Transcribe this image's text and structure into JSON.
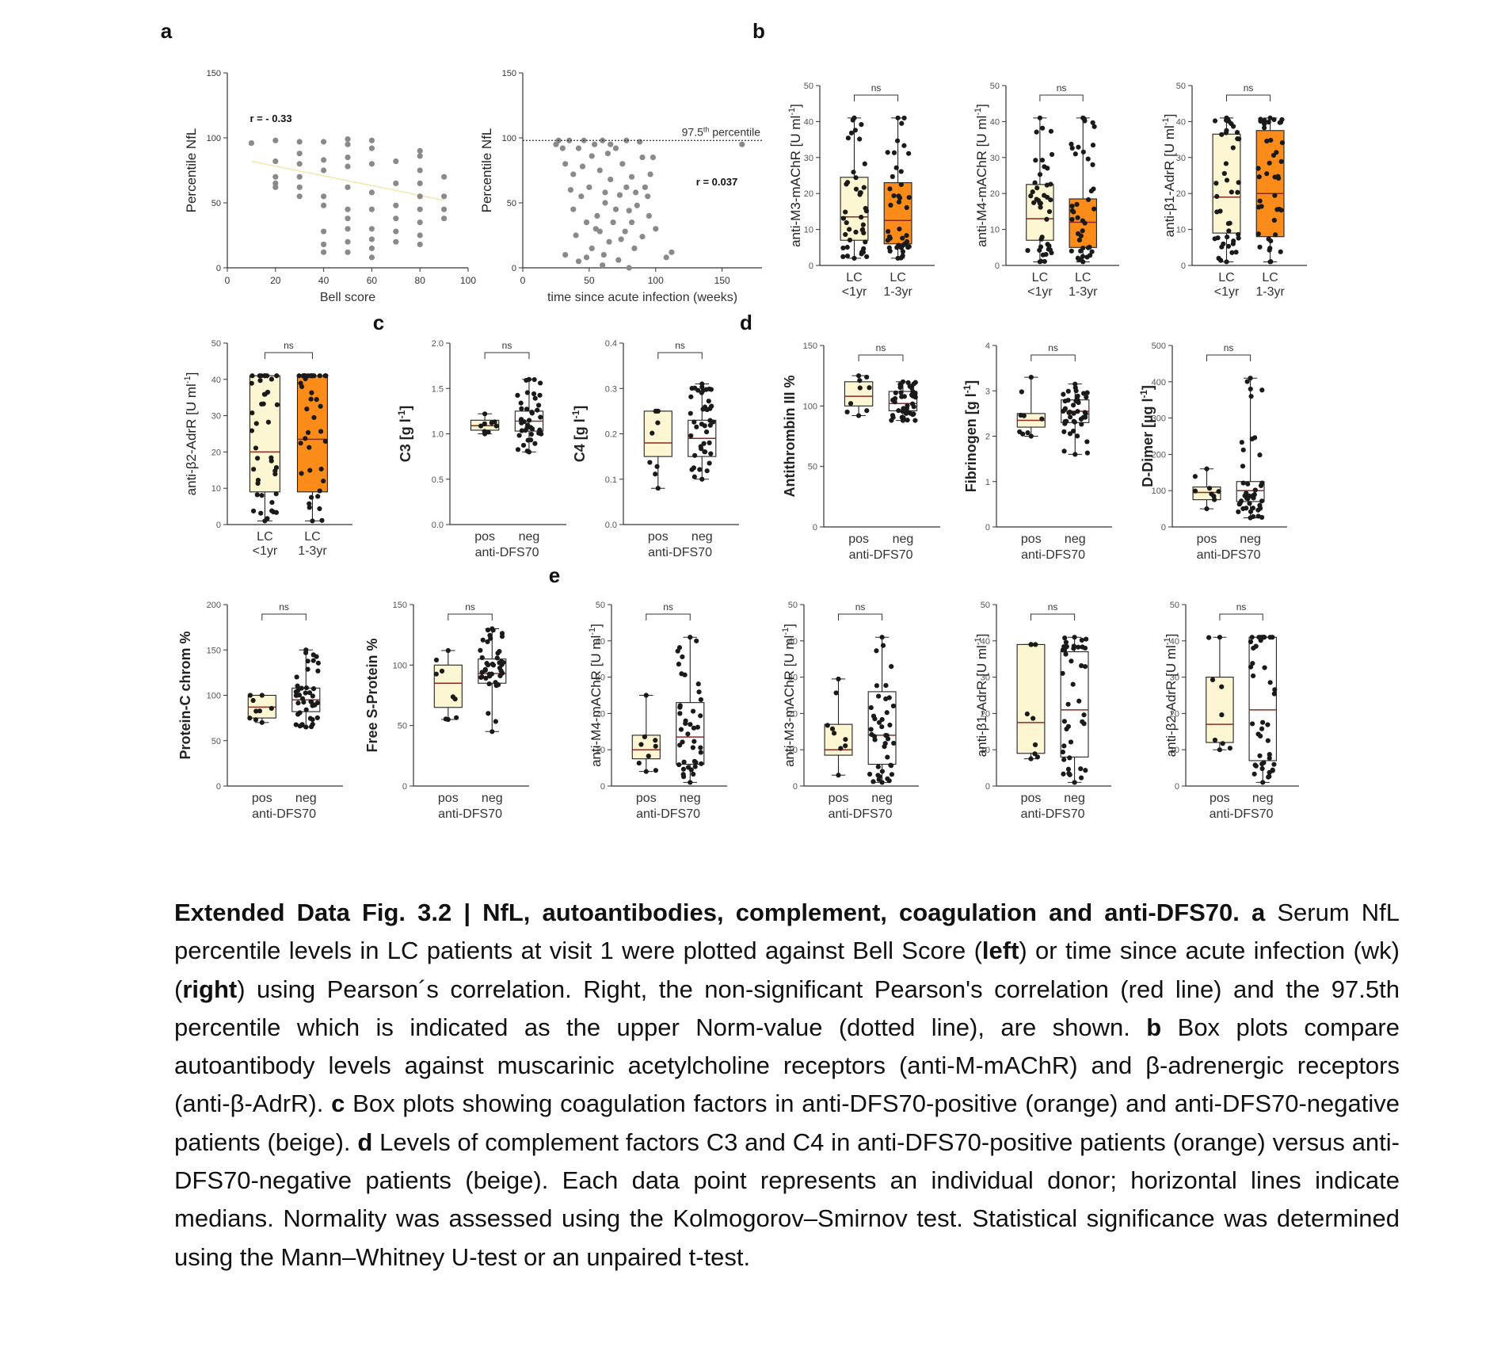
{
  "panel_letters": [
    "a",
    "b",
    "c",
    "d",
    "e"
  ],
  "colors": {
    "beige": "#fdf6d3",
    "orange": "#fb8c1a",
    "dots": "#1a1a1a",
    "gray_dots": "#8a8a8a",
    "axis": "#333333",
    "median_line": "#8b2a1f",
    "trend": "#f2e7a8"
  },
  "chart_data": [
    {
      "id": "a1",
      "type": "scatter",
      "panel": "a",
      "xlabel": "Bell score",
      "ylabel": "Percentile NfL",
      "xlim": [
        0,
        100
      ],
      "ylim": [
        0,
        150
      ],
      "xticks": [
        "0",
        "20",
        "40",
        "60",
        "80",
        "100"
      ],
      "yticks": [
        "0",
        "50",
        "100",
        "150"
      ],
      "annotation": "r = - 0.33",
      "points": [
        [
          10,
          96
        ],
        [
          20,
          98
        ],
        [
          20,
          82
        ],
        [
          20,
          70
        ],
        [
          20,
          65
        ],
        [
          20,
          62
        ],
        [
          30,
          97
        ],
        [
          30,
          88
        ],
        [
          30,
          80
        ],
        [
          30,
          70
        ],
        [
          30,
          62
        ],
        [
          30,
          55
        ],
        [
          40,
          97
        ],
        [
          40,
          83
        ],
        [
          40,
          75
        ],
        [
          40,
          55
        ],
        [
          40,
          48
        ],
        [
          40,
          28
        ],
        [
          40,
          18
        ],
        [
          40,
          12
        ],
        [
          50,
          99
        ],
        [
          50,
          95
        ],
        [
          50,
          85
        ],
        [
          50,
          78
        ],
        [
          50,
          62
        ],
        [
          50,
          45
        ],
        [
          50,
          38
        ],
        [
          50,
          30
        ],
        [
          50,
          20
        ],
        [
          50,
          12
        ],
        [
          60,
          98
        ],
        [
          60,
          92
        ],
        [
          60,
          80
        ],
        [
          60,
          58
        ],
        [
          60,
          45
        ],
        [
          60,
          30
        ],
        [
          60,
          22
        ],
        [
          60,
          15
        ],
        [
          60,
          8
        ],
        [
          70,
          82
        ],
        [
          70,
          65
        ],
        [
          70,
          48
        ],
        [
          70,
          38
        ],
        [
          70,
          28
        ],
        [
          70,
          20
        ],
        [
          80,
          90
        ],
        [
          80,
          86
        ],
        [
          80,
          75
        ],
        [
          80,
          65
        ],
        [
          80,
          55
        ],
        [
          80,
          45
        ],
        [
          80,
          35
        ],
        [
          80,
          25
        ],
        [
          80,
          18
        ],
        [
          90,
          70
        ],
        [
          90,
          55
        ],
        [
          90,
          45
        ],
        [
          90,
          38
        ]
      ],
      "trend": [
        [
          10,
          82
        ],
        [
          90,
          52
        ]
      ]
    },
    {
      "id": "a2",
      "type": "scatter",
      "panel": "a",
      "xlabel": "time since acute infection (weeks)",
      "ylabel": "Percentile NfL",
      "xlim": [
        0,
        180
      ],
      "ylim": [
        0,
        150
      ],
      "xticks": [
        "0",
        "50",
        "100",
        "150"
      ],
      "yticks": [
        "0",
        "50",
        "100",
        "150"
      ],
      "annotation": "r = 0.037",
      "reference_label": "97.5",
      "reference_sup": "th",
      "reference_suffix": " percentile",
      "reference_value": 98,
      "points": [
        [
          25,
          95
        ],
        [
          27,
          98
        ],
        [
          30,
          92
        ],
        [
          32,
          80
        ],
        [
          35,
          98
        ],
        [
          36,
          60
        ],
        [
          38,
          72
        ],
        [
          40,
          25
        ],
        [
          42,
          92
        ],
        [
          44,
          55
        ],
        [
          45,
          78
        ],
        [
          46,
          98
        ],
        [
          48,
          8
        ],
        [
          50,
          62
        ],
        [
          52,
          86
        ],
        [
          54,
          95
        ],
        [
          55,
          30
        ],
        [
          56,
          40
        ],
        [
          58,
          75
        ],
        [
          60,
          98
        ],
        [
          61,
          10
        ],
        [
          62,
          50
        ],
        [
          64,
          88
        ],
        [
          65,
          20
        ],
        [
          66,
          68
        ],
        [
          68,
          35
        ],
        [
          70,
          92
        ],
        [
          72,
          6
        ],
        [
          73,
          56
        ],
        [
          75,
          80
        ],
        [
          77,
          28
        ],
        [
          78,
          98
        ],
        [
          80,
          44
        ],
        [
          82,
          70
        ],
        [
          84,
          15
        ],
        [
          85,
          58
        ],
        [
          88,
          97
        ],
        [
          90,
          24
        ],
        [
          92,
          62
        ],
        [
          95,
          40
        ],
        [
          98,
          85
        ],
        [
          100,
          30
        ],
        [
          32,
          10
        ],
        [
          38,
          45
        ],
        [
          42,
          5
        ],
        [
          48,
          35
        ],
        [
          52,
          15
        ],
        [
          58,
          28
        ],
        [
          62,
          58
        ],
        [
          66,
          95
        ],
        [
          70,
          45
        ],
        [
          74,
          22
        ],
        [
          78,
          62
        ],
        [
          82,
          35
        ],
        [
          86,
          48
        ],
        [
          90,
          85
        ],
        [
          94,
          55
        ],
        [
          96,
          72
        ],
        [
          108,
          8
        ],
        [
          112,
          12
        ],
        [
          165,
          95
        ],
        [
          60,
          2
        ],
        [
          80,
          0
        ]
      ]
    },
    {
      "id": "b1",
      "type": "box",
      "panel": "b",
      "ylabel": "anti-M3-mAChR [U ml",
      "ylabel_sup": "-1",
      "ylabel_suffix": "]",
      "ylim": [
        0,
        50
      ],
      "yticks": [
        "0",
        "10",
        "20",
        "30",
        "40",
        "50"
      ],
      "groups": [
        "LC\n<1yr",
        "LC\n1-3yr"
      ],
      "fills": [
        "beige",
        "orange"
      ],
      "sig": "ns",
      "stats": [
        {
          "min": 2,
          "q1": 7,
          "median": 13.5,
          "q3": 24.5,
          "max": 41
        },
        {
          "min": 2,
          "q1": 6,
          "median": 12.5,
          "q3": 23,
          "max": 41
        }
      ]
    },
    {
      "id": "b2",
      "type": "box",
      "panel": "b",
      "ylabel": "anti-M4-mAChR [U ml",
      "ylabel_sup": "-1",
      "ylabel_suffix": "]",
      "ylim": [
        0,
        50
      ],
      "yticks": [
        "0",
        "10",
        "20",
        "30",
        "40",
        "50"
      ],
      "groups": [
        "LC\n<1yr",
        "LC\n1-3yr"
      ],
      "fills": [
        "beige",
        "orange"
      ],
      "sig": "ns",
      "stats": [
        {
          "min": 1,
          "q1": 7,
          "median": 13,
          "q3": 22.5,
          "max": 41
        },
        {
          "min": 1,
          "q1": 5,
          "median": 12,
          "q3": 18.5,
          "max": 41
        }
      ]
    },
    {
      "id": "b3",
      "type": "box",
      "panel": "b",
      "ylabel": "anti-β1-AdrR [U ml",
      "ylabel_sup": "-1",
      "ylabel_suffix": "]",
      "ylim": [
        0,
        50
      ],
      "yticks": [
        "0",
        "10",
        "20",
        "30",
        "40",
        "50"
      ],
      "groups": [
        "LC\n<1yr",
        "LC\n1-3yr"
      ],
      "fills": [
        "beige",
        "orange"
      ],
      "sig": "ns",
      "stats": [
        {
          "min": 1,
          "q1": 9,
          "median": 19,
          "q3": 36.5,
          "max": 41
        },
        {
          "min": 1,
          "q1": 8,
          "median": 20,
          "q3": 37.5,
          "max": 41
        }
      ]
    },
    {
      "id": "b4",
      "type": "box",
      "panel": "b",
      "ylabel": "anti-β2-AdrR [U ml",
      "ylabel_sup": "-1",
      "ylabel_suffix": "]",
      "ylim": [
        0,
        50
      ],
      "yticks": [
        "0",
        "10",
        "20",
        "30",
        "40",
        "50"
      ],
      "groups": [
        "LC\n<1yr",
        "LC\n1-3yr"
      ],
      "fills": [
        "beige",
        "orange"
      ],
      "sig": "ns",
      "stats": [
        {
          "min": 1,
          "q1": 9,
          "median": 20,
          "q3": 41,
          "max": 41
        },
        {
          "min": 1,
          "q1": 9,
          "median": 23.5,
          "q3": 41,
          "max": 41
        }
      ]
    },
    {
      "id": "c1",
      "type": "box",
      "panel": "c",
      "ylabel": "C3 [g l",
      "ylabel_sup": "-1",
      "ylabel_suffix": "]",
      "bold_label": true,
      "ylim": [
        0,
        2.0
      ],
      "yticks": [
        "0.0",
        "0.5",
        "1.0",
        "1.5",
        "2.0"
      ],
      "groups": [
        "pos",
        "neg"
      ],
      "xlabel": "anti-DFS70",
      "fills": [
        "beige",
        "white"
      ],
      "sig": "ns",
      "stats": [
        {
          "min": 1.0,
          "q1": 1.04,
          "median": 1.09,
          "q3": 1.15,
          "max": 1.22
        },
        {
          "min": 0.8,
          "q1": 1.03,
          "median": 1.14,
          "q3": 1.25,
          "max": 1.6
        }
      ]
    },
    {
      "id": "c2",
      "type": "box",
      "panel": "c",
      "ylabel": "C4 [g l",
      "ylabel_sup": "-1",
      "ylabel_suffix": "]",
      "bold_label": true,
      "ylim": [
        0,
        0.4
      ],
      "yticks": [
        "0.0",
        "0.1",
        "0.2",
        "0.3",
        "0.4"
      ],
      "groups": [
        "pos",
        "neg"
      ],
      "xlabel": "anti-DFS70",
      "fills": [
        "beige",
        "white"
      ],
      "sig": "ns",
      "stats": [
        {
          "min": 0.08,
          "q1": 0.15,
          "median": 0.18,
          "q3": 0.25,
          "max": 0.25
        },
        {
          "min": 0.1,
          "q1": 0.15,
          "median": 0.19,
          "q3": 0.23,
          "max": 0.31
        }
      ]
    },
    {
      "id": "d1",
      "type": "box",
      "panel": "d",
      "ylabel": "Antithrombin III %",
      "bold_label": true,
      "ylim": [
        0,
        150
      ],
      "yticks": [
        "0",
        "50",
        "100",
        "150"
      ],
      "groups": [
        "pos",
        "neg"
      ],
      "xlabel": "anti-DFS70",
      "fills": [
        "beige",
        "white"
      ],
      "sig": "ns",
      "stats": [
        {
          "min": 92,
          "q1": 100,
          "median": 108,
          "q3": 120,
          "max": 125
        },
        {
          "min": 88,
          "q1": 96,
          "median": 102,
          "q3": 112,
          "max": 120
        }
      ]
    },
    {
      "id": "d2",
      "type": "box",
      "panel": "d",
      "ylabel": "Fibrinogen [g l",
      "ylabel_sup": "-1",
      "ylabel_suffix": "]",
      "bold_label": true,
      "ylim": [
        0,
        4
      ],
      "yticks": [
        "0",
        "1",
        "2",
        "3",
        "4"
      ],
      "groups": [
        "pos",
        "neg"
      ],
      "xlabel": "anti-DFS70",
      "fills": [
        "beige",
        "white"
      ],
      "sig": "ns",
      "stats": [
        {
          "min": 2.0,
          "q1": 2.2,
          "median": 2.35,
          "q3": 2.5,
          "max": 3.3
        },
        {
          "min": 1.6,
          "q1": 2.3,
          "median": 2.55,
          "q3": 2.8,
          "max": 3.15
        }
      ]
    },
    {
      "id": "d3",
      "type": "box",
      "panel": "d",
      "ylabel": "D-Dimer [µg l",
      "ylabel_sup": "-1",
      "ylabel_suffix": "]",
      "bold_label": true,
      "ylim": [
        0,
        500
      ],
      "yticks": [
        "0",
        "100",
        "200",
        "300",
        "400",
        "500"
      ],
      "groups": [
        "pos",
        "neg"
      ],
      "xlabel": "anti-DFS70",
      "fills": [
        "beige",
        "white"
      ],
      "sig": "ns",
      "stats": [
        {
          "min": 50,
          "q1": 75,
          "median": 95,
          "q3": 110,
          "max": 160
        },
        {
          "min": 25,
          "q1": 70,
          "median": 100,
          "q3": 125,
          "max": 410
        }
      ]
    },
    {
      "id": "d4",
      "type": "box",
      "panel": "d",
      "ylabel": "Protein-C chrom %",
      "bold_label": true,
      "ylim": [
        0,
        200
      ],
      "yticks": [
        "0",
        "50",
        "100",
        "150",
        "200"
      ],
      "groups": [
        "pos",
        "neg"
      ],
      "xlabel": "anti-DFS70",
      "fills": [
        "beige",
        "white"
      ],
      "sig": "ns",
      "stats": [
        {
          "min": 70,
          "q1": 75,
          "median": 87,
          "q3": 100,
          "max": 100
        },
        {
          "min": 65,
          "q1": 82,
          "median": 95,
          "q3": 108,
          "max": 150
        }
      ]
    },
    {
      "id": "d5",
      "type": "box",
      "panel": "d",
      "ylabel": "Free S-Protein %",
      "bold_label": true,
      "ylim": [
        0,
        150
      ],
      "yticks": [
        "0",
        "50",
        "100",
        "150"
      ],
      "groups": [
        "pos",
        "neg"
      ],
      "xlabel": "anti-DFS70",
      "fills": [
        "beige",
        "white"
      ],
      "sig": "ns",
      "stats": [
        {
          "min": 55,
          "q1": 65,
          "median": 85,
          "q3": 100,
          "max": 112
        },
        {
          "min": 45,
          "q1": 85,
          "median": 93,
          "q3": 105,
          "max": 130
        }
      ]
    },
    {
      "id": "e1",
      "type": "box",
      "panel": "e",
      "ylabel": "anti-M4-mAChR [U ml",
      "ylabel_sup": "-1",
      "ylabel_suffix": "]",
      "ylim": [
        0,
        50
      ],
      "yticks": [
        "0",
        "10",
        "20",
        "30",
        "40",
        "50"
      ],
      "groups": [
        "pos",
        "neg"
      ],
      "xlabel": "anti-DFS70",
      "fills": [
        "beige",
        "white"
      ],
      "sig": "ns",
      "stats": [
        {
          "min": 4,
          "q1": 7.5,
          "median": 10,
          "q3": 14,
          "max": 25
        },
        {
          "min": 1,
          "q1": 6,
          "median": 13.5,
          "q3": 23,
          "max": 41
        }
      ]
    },
    {
      "id": "e2",
      "type": "box",
      "panel": "e",
      "ylabel": "anti-M3-mAChR [U ml",
      "ylabel_sup": "-1",
      "ylabel_suffix": "]",
      "ylim": [
        0,
        50
      ],
      "yticks": [
        "0",
        "10",
        "20",
        "30",
        "40",
        "50"
      ],
      "groups": [
        "pos",
        "neg"
      ],
      "xlabel": "anti-DFS70",
      "fills": [
        "beige",
        "white"
      ],
      "sig": "ns",
      "stats": [
        {
          "min": 3,
          "q1": 8.5,
          "median": 10,
          "q3": 17,
          "max": 29.5
        },
        {
          "min": 1,
          "q1": 6,
          "median": 14,
          "q3": 26,
          "max": 41
        }
      ]
    },
    {
      "id": "e3",
      "type": "box",
      "panel": "e",
      "ylabel": "anti-β1-AdrR [U ml",
      "ylabel_sup": "-1",
      "ylabel_suffix": "]",
      "ylim": [
        0,
        50
      ],
      "yticks": [
        "0",
        "10",
        "20",
        "30",
        "40",
        "50"
      ],
      "groups": [
        "pos",
        "neg"
      ],
      "xlabel": "anti-DFS70",
      "fills": [
        "beige",
        "white"
      ],
      "sig": "ns",
      "stats": [
        {
          "min": 7.5,
          "q1": 9,
          "median": 17.5,
          "q3": 39,
          "max": 39
        },
        {
          "min": 1,
          "q1": 8,
          "median": 21,
          "q3": 37,
          "max": 41
        }
      ]
    },
    {
      "id": "e4",
      "type": "box",
      "panel": "e",
      "ylabel": "anti-β2-AdrR [U ml",
      "ylabel_sup": "-1",
      "ylabel_suffix": "]",
      "ylim": [
        0,
        50
      ],
      "yticks": [
        "0",
        "10",
        "20",
        "30",
        "40",
        "50"
      ],
      "groups": [
        "pos",
        "neg"
      ],
      "xlabel": "anti-DFS70",
      "fills": [
        "beige",
        "white"
      ],
      "sig": "ns",
      "stats": [
        {
          "min": 10,
          "q1": 12,
          "median": 17,
          "q3": 30,
          "max": 41
        },
        {
          "min": 1,
          "q1": 7,
          "median": 21,
          "q3": 41,
          "max": 41
        }
      ]
    }
  ],
  "caption": {
    "title": "Extended Data Fig. 3.2 | NfL, autoantibodies, complement, coagulation and anti-DFS70.",
    "a_label": "a",
    "a_text_1": " Serum NfL percentile levels in LC patients at visit 1 were plotted against Bell Score (",
    "left": "left",
    "a_text_2": ") or time since acute infection (wk)(",
    "right": "right",
    "a_text_3": ") using Pearson´s correlation. Right, the non-significant Pearson's correlation (red line) and the 97.5th percentile which is indicated as the upper Norm-value (dotted line), are shown. ",
    "b_label": "b",
    "b_text": " Box plots compare autoantibody levels against muscarinic acetylcholine receptors (anti-M-mAChR) and β-adrenergic receptors (anti-β-AdrR). ",
    "c_label": "c",
    "c_text": " Box plots showing coagulation factors in anti-DFS70-positive (orange) and anti-DFS70-negative patients (beige). ",
    "d_label": "d",
    "d_text": " Levels of complement factors C3 and C4 in anti-DFS70-positive patients (orange) versus anti-DFS70-negative patients (beige). Each data point represents an individual donor; horizontal lines indicate medians. Normality was assessed using the Kolmogorov–Smirnov test. Statistical significance was determined using the Mann–Whitney U-test or an unpaired t-test."
  }
}
